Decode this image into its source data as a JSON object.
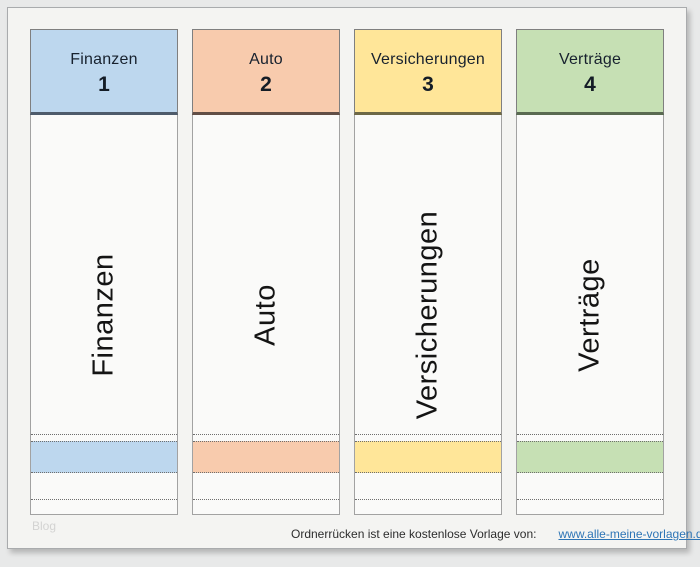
{
  "page": {
    "watermark": "Blog",
    "footer": {
      "text": "Ordnerrücken ist eine kostenlose Vorlage von:",
      "link": "www.alle-meine-vorlagen.de",
      "link_color": "#2e75b6"
    },
    "labels": [
      {
        "title": "Finanzen",
        "number": "1",
        "spine_text": "Finanzen",
        "fill": "#bdd7ee",
        "accent": "#4e5b6b"
      },
      {
        "title": "Auto",
        "number": "2",
        "spine_text": "Auto",
        "fill": "#f8cbad",
        "accent": "#614e46"
      },
      {
        "title": "Versicherungen",
        "number": "3",
        "spine_text": "Versicherungen",
        "fill": "#ffe699",
        "accent": "#6d6847"
      },
      {
        "title": "Verträge",
        "number": "4",
        "spine_text": "Verträge",
        "fill": "#c6e0b4",
        "accent": "#5a6a52"
      }
    ]
  }
}
